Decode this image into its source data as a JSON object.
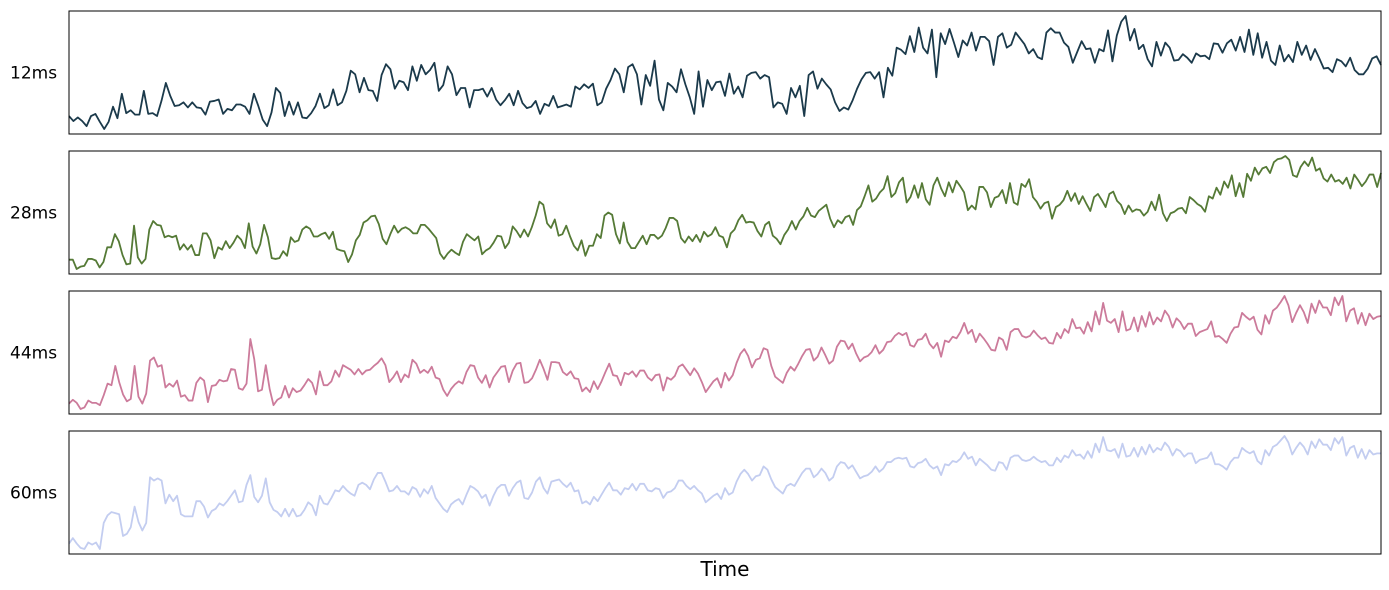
{
  "chart_data": {
    "type": "line",
    "xlabel": "Time",
    "x_ticks_visible": false,
    "y_ticks_visible": false,
    "grid": false,
    "panels": [
      {
        "label": "12ms",
        "color": "#1b3a4b",
        "values": [
          45,
          38,
          43,
          38,
          31,
          45,
          48,
          37,
          27,
          37,
          58,
          42,
          76,
          49,
          53,
          47,
          47,
          80,
          48,
          49,
          45,
          66,
          91,
          73,
          59,
          60,
          64,
          57,
          64,
          57,
          56,
          47,
          65,
          66,
          68,
          48,
          55,
          53,
          61,
          61,
          58,
          48,
          76,
          59,
          40,
          31,
          50,
          84,
          77,
          45,
          65,
          47,
          64,
          43,
          42,
          49,
          59,
          76,
          56,
          60,
          82,
          60,
          64,
          80,
          108,
          103,
          78,
          98,
          81,
          80,
          66,
          102,
          117,
          110,
          83,
          94,
          92,
          81,
          114,
          94,
          116,
          103,
          109,
          119,
          80,
          88,
          114,
          103,
          74,
          84,
          84,
          57,
          81,
          81,
          83,
          72,
          84,
          68,
          60,
          67,
          76,
          60,
          80,
          63,
          56,
          58,
          66,
          48,
          62,
          59,
          73,
          57,
          59,
          61,
          58,
          86,
          82,
          89,
          84,
          90,
          60,
          64,
          83,
          95,
          111,
          103,
          78,
          113,
          117,
          103,
          61,
          102,
          87,
          122,
          68,
          53,
          91,
          86,
          78,
          110,
          89,
          71,
          48,
          107,
          58,
          95,
          81,
          92,
          93,
          73,
          104,
          76,
          86,
          71,
          101,
          105,
          106,
          97,
          102,
          99,
          57,
          64,
          62,
          48,
          84,
          71,
          87,
          45,
          102,
          107,
          83,
          97,
          89,
          82,
          64,
          52,
          57,
          54,
          67,
          83,
          96,
          105,
          106,
          97,
          106,
          71,
          112,
          101,
          140,
          137,
          131,
          156,
          134,
          168,
          140,
          132,
          165,
          99,
          160,
          145,
          166,
          147,
          127,
          150,
          143,
          161,
          136,
          155,
          155,
          149,
          116,
          155,
          160,
          140,
          144,
          161,
          153,
          145,
          132,
          138,
          127,
          124,
          161,
          167,
          161,
          161,
          147,
          141,
          119,
          134,
          149,
          138,
          139,
          119,
          138,
          135,
          164,
          121,
          157,
          176,
          184,
          150,
          166,
          138,
          144,
          124,
          114,
          148,
          129,
          147,
          140,
          122,
          123,
          131,
          126,
          119,
          132,
          128,
          129,
          124,
          146,
          145,
          133,
          146,
          151,
          136,
          155,
          134,
          165,
          130,
          160,
          126,
          148,
          122,
          116,
          143,
          121,
          130,
          120,
          148,
          130,
          143,
          123,
          138,
          125,
          111,
          112,
          106,
          124,
          121,
          114,
          126,
          109,
          103,
          103,
          111,
          125,
          128,
          116
        ]
      },
      {
        "label": "28ms",
        "color": "#557a36",
        "values": [
          36,
          36,
          24,
          27,
          28,
          37,
          37,
          35,
          26,
          33,
          52,
          52,
          69,
          60,
          42,
          30,
          31,
          80,
          39,
          31,
          37,
          75,
          86,
          81,
          80,
          65,
          67,
          65,
          67,
          49,
          56,
          49,
          55,
          42,
          42,
          70,
          70,
          61,
          38,
          52,
          49,
          60,
          51,
          58,
          67,
          62,
          51,
          83,
          53,
          44,
          56,
          81,
          65,
          38,
          37,
          38,
          47,
          41,
          65,
          59,
          61,
          75,
          79,
          76,
          66,
          66,
          69,
          71,
          63,
          72,
          50,
          48,
          47,
          33,
          43,
          61,
          68,
          84,
          87,
          92,
          93,
          82,
          63,
          56,
          69,
          80,
          71,
          76,
          78,
          75,
          70,
          70,
          81,
          81,
          76,
          70,
          64,
          44,
          37,
          44,
          49,
          45,
          42,
          59,
          69,
          65,
          61,
          66,
          43,
          48,
          51,
          58,
          67,
          66,
          51,
          58,
          79,
          73,
          65,
          75,
          66,
          78,
          93,
          111,
          107,
          83,
          77,
          88,
          67,
          69,
          80,
          66,
          54,
          48,
          61,
          41,
          54,
          54,
          69,
          64,
          93,
          97,
          94,
          69,
          57,
          84,
          59,
          51,
          51,
          59,
          67,
          56,
          68,
          68,
          63,
          67,
          77,
          90,
          90,
          86,
          64,
          58,
          66,
          60,
          68,
          59,
          72,
          66,
          69,
          78,
          67,
          65,
          52,
          70,
          75,
          87,
          94,
          84,
          85,
          84,
          73,
          66,
          81,
          85,
          67,
          63,
          56,
          68,
          75,
          86,
          75,
          86,
          92,
          103,
          93,
          91,
          99,
          103,
          107,
          89,
          78,
          87,
          83,
          91,
          93,
          81,
          100,
          105,
          118,
          132,
          111,
          115,
          123,
          128,
          144,
          117,
          122,
          136,
          142,
          110,
          117,
          132,
          116,
          135,
          114,
          107,
          132,
          142,
          128,
          118,
          136,
          123,
          138,
          131,
          123,
          100,
          106,
          101,
          130,
          130,
          123,
          104,
          116,
          118,
          126,
          109,
          135,
          110,
          107,
          134,
          130,
          140,
          117,
          111,
          102,
          109,
          111,
          89,
          104,
          107,
          113,
          125,
          112,
          122,
          108,
          118,
          108,
          99,
          117,
          121,
          113,
          104,
          121,
          124,
          112,
          107,
          95,
          106,
          98,
          101,
          100,
          93,
          98,
          111,
          100,
          120,
          96,
          86,
          96,
          98,
          102,
          103,
          96,
          117,
          113,
          108,
          105,
          98,
          118,
          115,
          129,
          120,
          137,
          129,
          145,
          118,
          135,
          117,
          147,
          138,
          155,
          146,
          154,
          156,
          148,
          162,
          166,
          167,
          170,
          165,
          145,
          143,
          156,
          163,
          157,
          168,
          151,
          154,
          141,
          137,
          146,
          137,
          139,
          134,
          142,
          128,
          146,
          139,
          131,
          137,
          146,
          146,
          130,
          148
        ]
      },
      {
        "label": "44ms",
        "color": "#cc7b9b",
        "values": [
          36,
          41,
          37,
          29,
          31,
          40,
          37,
          37,
          34,
          47,
          62,
          60,
          85,
          64,
          48,
          39,
          42,
          85,
          45,
          36,
          49,
          92,
          96,
          84,
          86,
          57,
          62,
          58,
          66,
          45,
          47,
          40,
          40,
          63,
          70,
          66,
          38,
          59,
          60,
          67,
          65,
          66,
          81,
          80,
          56,
          54,
          62,
          120,
          94,
          52,
          54,
          86,
          55,
          34,
          41,
          44,
          59,
          44,
          56,
          51,
          53,
          60,
          68,
          63,
          48,
          78,
          60,
          60,
          65,
          79,
          71,
          86,
          83,
          80,
          74,
          81,
          74,
          79,
          80,
          85,
          89,
          95,
          86,
          64,
          70,
          78,
          64,
          74,
          70,
          93,
          88,
          76,
          80,
          76,
          84,
          70,
          68,
          54,
          46,
          55,
          61,
          65,
          62,
          77,
          86,
          85,
          70,
          63,
          73,
          57,
          70,
          77,
          84,
          85,
          64,
          79,
          88,
          89,
          63,
          64,
          69,
          80,
          93,
          81,
          67,
          90,
          90,
          89,
          77,
          73,
          78,
          69,
          68,
          52,
          57,
          51,
          65,
          55,
          65,
          77,
          88,
          73,
          72,
          60,
          76,
          74,
          78,
          71,
          79,
          79,
          70,
          66,
          73,
          74,
          53,
          70,
          67,
          72,
          84,
          87,
          80,
          73,
          82,
          75,
          64,
          51,
          58,
          65,
          69,
          57,
          76,
          66,
          73,
          89,
          101,
          107,
          98,
          83,
          93,
          95,
          108,
          106,
          85,
          71,
          67,
          63,
          76,
          84,
          79,
          88,
          98,
          106,
          107,
          92,
          97,
          109,
          99,
          88,
          92,
          110,
          118,
          117,
          107,
          114,
          101,
          91,
          96,
          98,
          103,
          112,
          101,
          106,
          116,
          117,
          124,
          128,
          125,
          128,
          112,
          110,
          119,
          120,
          127,
          114,
          108,
          115,
          97,
          118,
          116,
          123,
          121,
          129,
          141,
          127,
          132,
          116,
          127,
          121,
          114,
          106,
          105,
          122,
          119,
          106,
          129,
          133,
          133,
          124,
          122,
          124,
          131,
          125,
          120,
          122,
          115,
          114,
          128,
          121,
          133,
          128,
          146,
          134,
          135,
          127,
          142,
          130,
          156,
          139,
          167,
          144,
          141,
          146,
          129,
          156,
          131,
          133,
          148,
          130,
          150,
          136,
          155,
          139,
          148,
          143,
          157,
          150,
          135,
          147,
          142,
          133,
          140,
          140,
          124,
          129,
          131,
          133,
          143,
          123,
          124,
          120,
          115,
          127,
          135,
          136,
          154,
          149,
          145,
          149,
          132,
          126,
          151,
          140,
          157,
          161,
          168,
          176,
          164,
          142,
          154,
          164,
          155,
          141,
          166,
          154,
          170,
          161,
          161,
          151,
          174,
          164,
          176,
          143,
          157,
          160,
          140,
          154,
          138,
          153,
          146,
          149,
          150
        ]
      },
      {
        "label": "60ms",
        "color": "#c3cdf0",
        "values": [
          35,
          40,
          35,
          31,
          30,
          36,
          34,
          36,
          30,
          54,
          61,
          64,
          63,
          62,
          42,
          44,
          50,
          69,
          55,
          47,
          54,
          96,
          93,
          95,
          93,
          72,
          80,
          74,
          79,
          62,
          60,
          60,
          60,
          74,
          74,
          69,
          59,
          65,
          67,
          72,
          70,
          74,
          79,
          84,
          73,
          74,
          89,
          98,
          78,
          73,
          79,
          95,
          73,
          66,
          64,
          60,
          67,
          60,
          67,
          60,
          61,
          66,
          73,
          70,
          61,
          79,
          72,
          71,
          77,
          84,
          83,
          88,
          84,
          81,
          79,
          89,
          91,
          89,
          85,
          94,
          100,
          100,
          92,
          83,
          84,
          88,
          83,
          83,
          80,
          87,
          85,
          78,
          85,
          81,
          88,
          77,
          72,
          67,
          64,
          71,
          74,
          76,
          71,
          80,
          88,
          86,
          83,
          77,
          80,
          70,
          79,
          86,
          89,
          89,
          79,
          86,
          91,
          93,
          77,
          76,
          82,
          92,
          96,
          86,
          81,
          92,
          93,
          94,
          90,
          87,
          91,
          83,
          84,
          72,
          74,
          71,
          78,
          74,
          80,
          86,
          91,
          84,
          84,
          80,
          86,
          85,
          90,
          84,
          90,
          90,
          84,
          83,
          86,
          85,
          77,
          82,
          83,
          86,
          93,
          93,
          88,
          85,
          88,
          84,
          81,
          73,
          76,
          79,
          81,
          76,
          86,
          80,
          82,
          92,
          99,
          103,
          99,
          93,
          97,
          98,
          106,
          103,
          94,
          87,
          84,
          81,
          88,
          90,
          88,
          94,
          100,
          104,
          104,
          96,
          99,
          104,
          100,
          93,
          96,
          106,
          110,
          109,
          104,
          107,
          101,
          95,
          97,
          98,
          101,
          106,
          101,
          104,
          110,
          110,
          113,
          114,
          113,
          114,
          106,
          105,
          109,
          110,
          113,
          107,
          104,
          106,
          98,
          108,
          107,
          111,
          110,
          113,
          119,
          113,
          115,
          107,
          113,
          110,
          107,
          103,
          102,
          110,
          109,
          103,
          114,
          116,
          116,
          112,
          111,
          112,
          115,
          112,
          110,
          111,
          107,
          107,
          114,
          110,
          116,
          114,
          121,
          116,
          117,
          113,
          120,
          114,
          127,
          119,
          133,
          121,
          120,
          122,
          114,
          127,
          115,
          116,
          123,
          115,
          124,
          117,
          126,
          119,
          123,
          121,
          128,
          124,
          116,
          122,
          120,
          115,
          118,
          118,
          109,
          112,
          113,
          114,
          119,
          108,
          108,
          106,
          103,
          110,
          114,
          114,
          123,
          120,
          118,
          120,
          111,
          108,
          121,
          116,
          124,
          126,
          130,
          134,
          128,
          117,
          123,
          128,
          124,
          117,
          129,
          123,
          131,
          126,
          126,
          121,
          132,
          127,
          133,
          116,
          123,
          125,
          114,
          122,
          113,
          121,
          117,
          118,
          118
        ]
      }
    ]
  }
}
